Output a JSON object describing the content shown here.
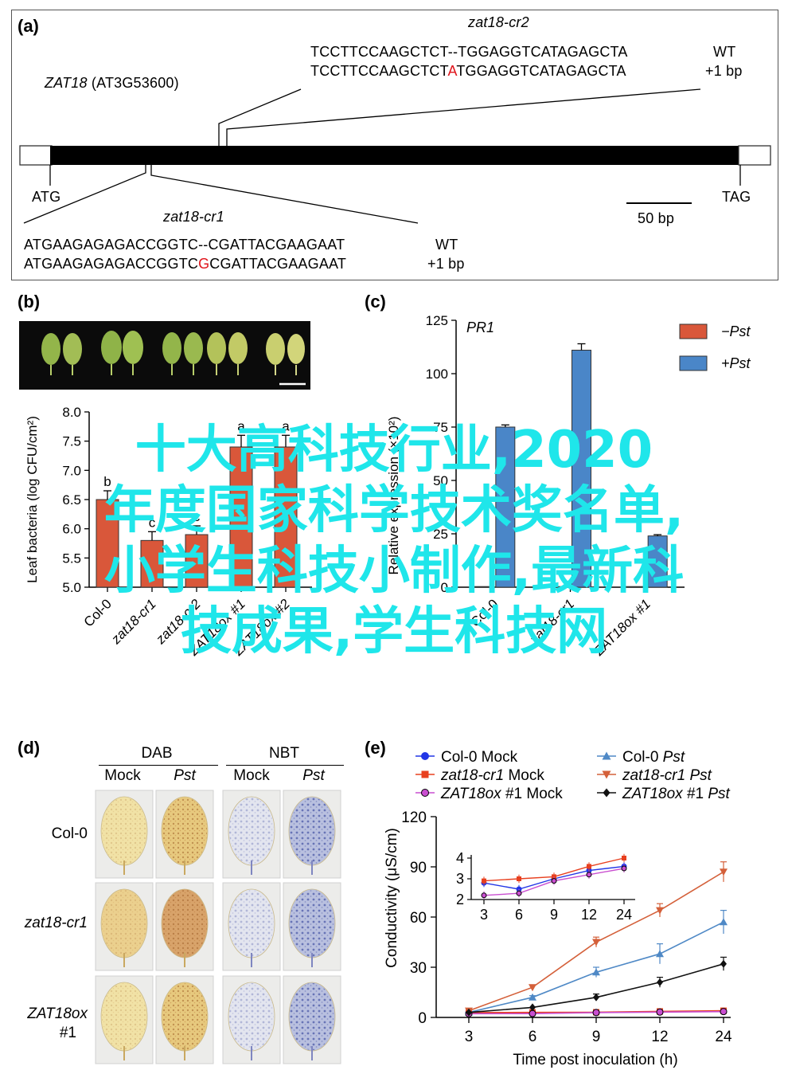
{
  "panel_a": {
    "label": "(a)",
    "gene": "ZAT18",
    "locus": "(AT3G53600)",
    "start_codon": "ATG",
    "stop_codon": "TAG",
    "scale": "50 bp",
    "cr2": {
      "title": "zat18-cr2",
      "wt_seq": "TCCTTCCAAGCTCT--TGGAGGTCATAGAGCTA",
      "wt_label": "WT",
      "mut_prefix": "TCCTTCCAAGCTCT",
      "mut_ins": "A",
      "mut_suffix": "TGGAGGTCATAGAGCTA",
      "mut_label": "+1 bp"
    },
    "cr1": {
      "title": "zat18-cr1",
      "wt_seq": "ATGAAGAGAGACCGGTC--CGATTACGAAGAAT",
      "wt_label": "WT",
      "mut_prefix": "ATGAAGAGAGACCGGTC",
      "mut_ins": "G",
      "mut_suffix": "CGATTACGAAGAAT",
      "mut_label": "+1 bp"
    }
  },
  "panel_b": {
    "label": "(b)",
    "chart_data": {
      "type": "bar",
      "categories": [
        "Col-0",
        "zat18-cr1",
        "zat18-cr2",
        "ZAT18ox #1",
        "ZAT18ox #2"
      ],
      "values": [
        6.5,
        5.8,
        5.9,
        7.4,
        7.4
      ],
      "errors": [
        0.15,
        0.15,
        0.15,
        0.2,
        0.2
      ],
      "letters": [
        "b",
        "c",
        "c",
        "a",
        "a"
      ],
      "ylabel": "Leaf bacteria (log CFU/cm²)",
      "ylim": [
        5.0,
        8.0
      ],
      "yticks": [
        "5.0",
        "5.5",
        "6.0",
        "6.5",
        "7.0",
        "7.5",
        "8.0"
      ],
      "color": "#d9573a"
    }
  },
  "panel_c": {
    "label": "(c)",
    "chart_data": {
      "type": "bar",
      "title": "PR1",
      "categories": [
        "Col-0",
        "zat18-cr1",
        "ZAT18ox #1"
      ],
      "series": [
        {
          "name": "−Pst",
          "values": [
            0.3,
            0.3,
            0.3
          ],
          "color": "#d9573a"
        },
        {
          "name": "+Pst",
          "values": [
            75,
            111,
            24
          ],
          "color": "#4a86c8"
        }
      ],
      "errors": [
        1,
        3,
        0.6
      ],
      "ylabel": "Relative expression (×10²)",
      "ylim": [
        0,
        125
      ],
      "yticks": [
        "0",
        "25",
        "50",
        "75",
        "100",
        "125"
      ],
      "legend_position": "top-right"
    }
  },
  "panel_d": {
    "label": "(d)",
    "stains": [
      {
        "name": "DAB",
        "conditions": [
          "Mock",
          "Pst"
        ]
      },
      {
        "name": "NBT",
        "conditions": [
          "Mock",
          "Pst"
        ]
      }
    ],
    "rows": [
      "Col-0",
      "zat18-cr1",
      "ZAT18ox",
      "#1"
    ]
  },
  "panel_e": {
    "label": "(e)",
    "legend": [
      {
        "name": "Col-0 Mock",
        "color": "#2236e6",
        "marker": "circle"
      },
      {
        "name": "Col-0 Pst",
        "color": "#4f89c6",
        "marker": "triangle-up"
      },
      {
        "name": "zat18-cr1 Mock",
        "color": "#e8401f",
        "marker": "square"
      },
      {
        "name": "zat18-cr1 Pst",
        "color": "#d4603a",
        "marker": "triangle-down"
      },
      {
        "name": "ZAT18ox #1 Mock",
        "color": "#c94ed0",
        "marker": "circle"
      },
      {
        "name": "ZAT18ox #1 Pst",
        "color": "#111111",
        "marker": "diamond"
      }
    ],
    "chart_data": {
      "type": "line",
      "x": [
        3,
        6,
        9,
        12,
        24
      ],
      "xticks": [
        "3",
        "6",
        "9",
        "12",
        "24"
      ],
      "xlabel": "Time post inoculation (h)",
      "ylabel": "Conductivity (μS/cm)",
      "ylim": [
        0,
        120
      ],
      "yticks": [
        "0",
        "30",
        "60",
        "90",
        "120"
      ],
      "series": [
        {
          "name": "Col-0 Mock",
          "values": [
            2.8,
            2.5,
            3.0,
            3.4,
            3.6
          ],
          "errors": [
            0.2,
            0.2,
            0.2,
            0.2,
            0.2
          ]
        },
        {
          "name": "Col-0 Pst",
          "values": [
            3,
            12,
            27,
            38,
            57
          ],
          "errors": [
            0.5,
            1,
            3,
            6,
            7
          ]
        },
        {
          "name": "zat18-cr1 Mock",
          "values": [
            2.9,
            3.0,
            3.1,
            3.6,
            4.0
          ],
          "errors": [
            0.2,
            0.2,
            0.2,
            0.2,
            0.2
          ]
        },
        {
          "name": "zat18-cr1 Pst",
          "values": [
            4,
            18,
            45,
            64,
            87
          ],
          "errors": [
            0.5,
            1.5,
            3,
            4,
            6
          ]
        },
        {
          "name": "ZAT18ox #1 Mock",
          "values": [
            2.2,
            2.3,
            2.9,
            3.2,
            3.5
          ],
          "errors": [
            0.2,
            0.2,
            0.2,
            0.2,
            0.2
          ]
        },
        {
          "name": "ZAT18ox #1 Pst",
          "values": [
            3,
            6,
            12,
            21,
            32
          ],
          "errors": [
            0.3,
            0.5,
            2,
            3,
            4
          ]
        }
      ],
      "inset": {
        "ylim": [
          2,
          4
        ],
        "yticks": [
          "2",
          "3",
          "4"
        ],
        "xticks": [
          "3",
          "6",
          "9",
          "12",
          "24"
        ]
      }
    }
  },
  "overlay_text": {
    "line1": "十大高科技行业,2020",
    "line2": "年度国家科学技术奖名单,",
    "line3": "小学生科技小制作,最新科",
    "line4": "技成果,学生科技网"
  }
}
